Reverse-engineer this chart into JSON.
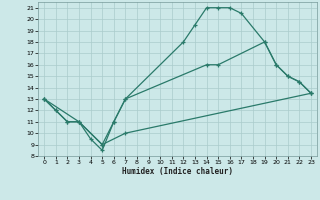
{
  "title": "",
  "xlabel": "Humidex (Indice chaleur)",
  "bg_color": "#cce8e8",
  "line_color": "#2a7a6a",
  "grid_color": "#aacccc",
  "xlim": [
    -0.5,
    23.5
  ],
  "ylim": [
    8,
    21.5
  ],
  "xticks": [
    0,
    1,
    2,
    3,
    4,
    5,
    6,
    7,
    8,
    9,
    10,
    11,
    12,
    13,
    14,
    15,
    16,
    17,
    18,
    19,
    20,
    21,
    22,
    23
  ],
  "yticks": [
    8,
    9,
    10,
    11,
    12,
    13,
    14,
    15,
    16,
    17,
    18,
    19,
    20,
    21
  ],
  "line1_x": [
    0,
    1,
    2,
    3,
    4,
    5,
    6,
    7,
    12,
    13,
    14,
    15,
    16,
    17,
    19,
    20,
    21,
    22,
    23
  ],
  "line1_y": [
    13,
    12,
    11,
    11,
    9.5,
    8.5,
    11,
    13,
    18,
    19.5,
    21,
    21,
    21,
    20.5,
    18,
    16,
    15,
    14.5,
    13.5
  ],
  "line2_x": [
    0,
    1,
    2,
    3,
    5,
    6,
    7,
    14,
    15,
    19,
    20,
    21,
    22,
    23
  ],
  "line2_y": [
    13,
    12,
    11,
    11,
    9,
    11,
    13,
    16,
    16,
    18,
    16,
    15,
    14.5,
    13.5
  ],
  "line3_x": [
    0,
    3,
    5,
    7,
    23
  ],
  "line3_y": [
    13,
    11,
    9,
    10,
    13.5
  ]
}
